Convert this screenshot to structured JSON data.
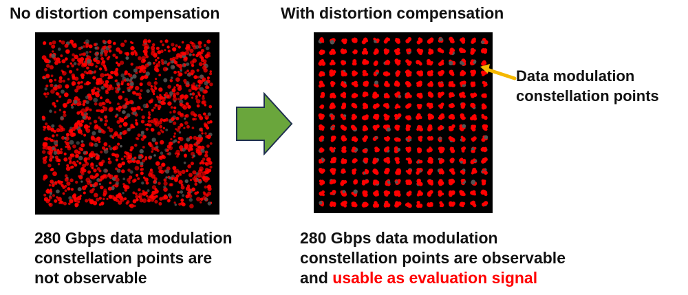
{
  "left": {
    "heading": "No distortion compensation",
    "caption_lines": [
      "280 Gbps data modulation",
      "constellation points are",
      "not observable"
    ]
  },
  "right": {
    "heading": "With distortion compensation",
    "caption_lines": [
      "280 Gbps data modulation",
      "constellation points are observable",
      "and "
    ],
    "caption_highlight": "usable as evaluation signal",
    "annotation_lines": [
      "Data modulation",
      "constellation points"
    ]
  },
  "colors": {
    "point": "#ff0000",
    "panel_background": "#000000",
    "flow_arrow": "#6aa63c",
    "flow_arrow_outline": "#1f2f4f",
    "pointer_arrow": "#f5b800",
    "highlight_text": "#ff0000"
  },
  "icons": {
    "flow_arrow": "right-arrow-icon",
    "pointer": "pointer-arrow-icon"
  }
}
